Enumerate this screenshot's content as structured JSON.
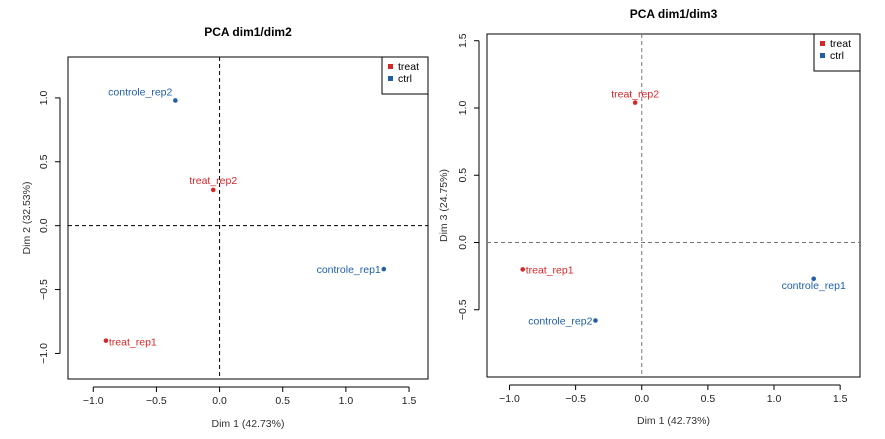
{
  "chart_data": [
    {
      "type": "scatter",
      "title": "PCA dim1/dim2",
      "xlabel": "Dim 1 (42.73%)",
      "ylabel": "Dim 2 (32.53%)",
      "xlim": [
        -1.2,
        1.65
      ],
      "ylim": [
        -1.2,
        1.32
      ],
      "xticks": [
        "−1.0",
        "−0.5",
        "0.0",
        "0.5",
        "1.0",
        "1.5"
      ],
      "yticks": [
        "−1.0",
        "−0.5",
        "0.0",
        "0.5",
        "1.0"
      ],
      "xtick_values": [
        -1.0,
        -0.5,
        0.0,
        0.5,
        1.0,
        1.5
      ],
      "ytick_values": [
        -1.0,
        -0.5,
        0.0,
        0.5,
        1.0
      ],
      "legend": {
        "position": "top-right",
        "entries": [
          "treat",
          "ctrl"
        ]
      },
      "reference_lines": {
        "x": 0,
        "y": 0,
        "style": "dashed",
        "color": "#000000"
      },
      "grid": false,
      "points": [
        {
          "label": "controle_rep2",
          "group": "ctrl",
          "x": -0.35,
          "y": 0.98
        },
        {
          "label": "treat_rep2",
          "group": "treat",
          "x": -0.05,
          "y": 0.28
        },
        {
          "label": "controle_rep1",
          "group": "ctrl",
          "x": 1.3,
          "y": -0.34
        },
        {
          "label": "treat_rep1",
          "group": "treat",
          "x": -0.9,
          "y": -0.9
        }
      ]
    },
    {
      "type": "scatter",
      "title": "PCA dim1/dim3",
      "xlabel": "Dim 1 (42.73%)",
      "ylabel": "Dim 3 (24.75%)",
      "xlim": [
        -1.17,
        1.65
      ],
      "ylim": [
        -1.0,
        1.55
      ],
      "xticks": [
        "−1.0",
        "−0.5",
        "0.0",
        "0.5",
        "1.0",
        "1.5"
      ],
      "yticks": [
        "−0.5",
        "0.0",
        "0.5",
        "1.0",
        "1.5"
      ],
      "xtick_values": [
        -1.0,
        -0.5,
        0.0,
        0.5,
        1.0,
        1.5
      ],
      "ytick_values": [
        -0.5,
        0.0,
        0.5,
        1.0,
        1.5
      ],
      "legend": {
        "position": "top-right",
        "entries": [
          "treat",
          "ctrl"
        ]
      },
      "reference_lines": {
        "x": 0,
        "y": 0,
        "style": "dashed",
        "color": "#777777"
      },
      "grid": false,
      "points": [
        {
          "label": "treat_rep2",
          "group": "treat",
          "x": -0.05,
          "y": 1.04
        },
        {
          "label": "treat_rep1",
          "group": "treat",
          "x": -0.9,
          "y": -0.2
        },
        {
          "label": "controle_rep2",
          "group": "ctrl",
          "x": -0.35,
          "y": -0.58
        },
        {
          "label": "controle_rep1",
          "group": "ctrl",
          "x": 1.3,
          "y": -0.27
        }
      ]
    }
  ],
  "colors": {
    "treat": "#d62728",
    "ctrl": "#1f5fa8",
    "axis": "#000000"
  }
}
